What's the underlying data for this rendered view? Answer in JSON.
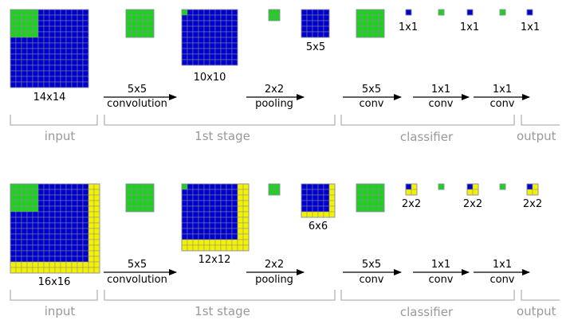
{
  "colors": {
    "green": "#1fd11f",
    "blue": "#0000cc",
    "yellow": "#f2f200",
    "grid_line": "#8a8aa0",
    "arrow": "#000000",
    "bracket": "#b3b3b3",
    "stage_text": "#999999"
  },
  "rows": [
    {
      "id": "top",
      "size_labels": {
        "input": "14x14",
        "conv_out": "10x10",
        "pool_out": "5x5",
        "out_a": "1x1",
        "out_b": "1x1",
        "out_c": "1x1"
      },
      "operations": {
        "convolution": {
          "size": "5x5",
          "name": "convolution"
        },
        "pooling": {
          "size": "2x2",
          "name": "pooling"
        },
        "conv1": {
          "size": "5x5",
          "name": "conv"
        },
        "conv2": {
          "size": "1x1",
          "name": "conv"
        },
        "conv3": {
          "size": "1x1",
          "name": "conv"
        }
      },
      "stages": {
        "input": "input",
        "first": "1st stage",
        "classifier": "classifier",
        "output": "output"
      }
    },
    {
      "id": "bottom",
      "size_labels": {
        "input": "16x16",
        "conv_out": "12x12",
        "pool_out": "6x6",
        "out_a": "2x2",
        "out_b": "2x2",
        "out_c": "2x2"
      },
      "operations": {
        "convolution": {
          "size": "5x5",
          "name": "convolution"
        },
        "pooling": {
          "size": "2x2",
          "name": "pooling"
        },
        "conv1": {
          "size": "5x5",
          "name": "conv"
        },
        "conv2": {
          "size": "1x1",
          "name": "conv"
        },
        "conv3": {
          "size": "1x1",
          "name": "conv"
        }
      },
      "stages": {
        "input": "input",
        "first": "1st stage",
        "classifier": "classifier",
        "output": "output"
      }
    }
  ]
}
